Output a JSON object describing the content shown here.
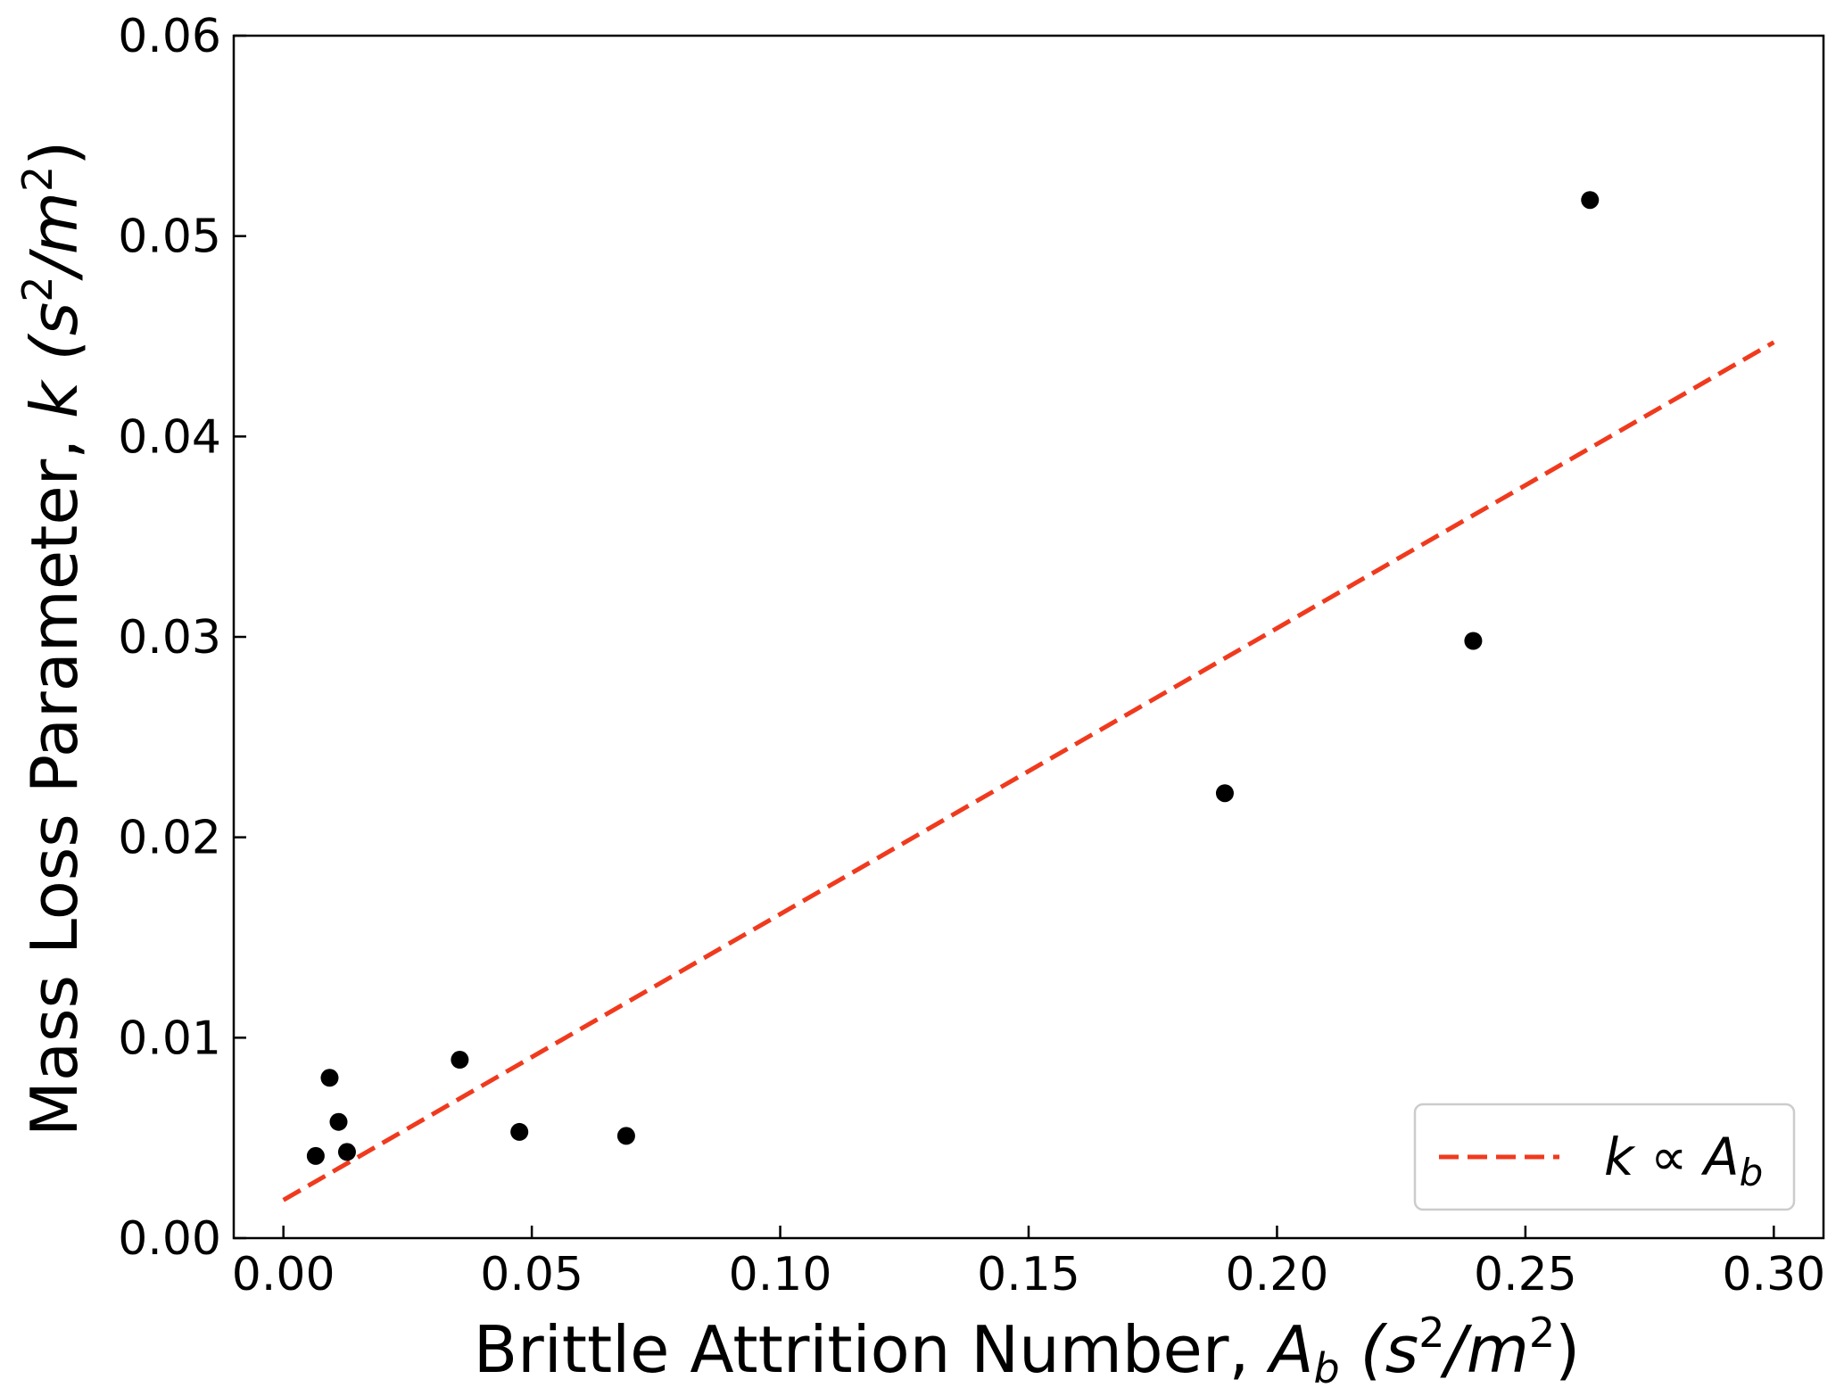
{
  "chart_data": {
    "type": "scatter",
    "xlabel": {
      "text": "Brittle Attrition Number, ",
      "symbol": "A",
      "sub": "b",
      "unit_open": " (s",
      "sup": "2",
      "unit_mid": "/m",
      "sup2": "2",
      "unit_close": ")"
    },
    "ylabel": {
      "text": "Mass Loss Parameter, ",
      "symbol": "k",
      "unit_open": " (s",
      "sup": "2",
      "unit_mid": "/m",
      "sup2": "2",
      "unit_close": ")"
    },
    "xlim": [
      -0.01,
      0.31
    ],
    "ylim": [
      0.0,
      0.06
    ],
    "xticks": [
      0.0,
      0.05,
      0.1,
      0.15,
      0.2,
      0.25,
      0.3
    ],
    "xtick_labels": [
      "0.00",
      "0.05",
      "0.10",
      "0.15",
      "0.20",
      "0.25",
      "0.30"
    ],
    "yticks": [
      0.0,
      0.01,
      0.02,
      0.03,
      0.04,
      0.05,
      0.06
    ],
    "ytick_labels": [
      "0.00",
      "0.01",
      "0.02",
      "0.03",
      "0.04",
      "0.05",
      "0.06"
    ],
    "grid": false,
    "legend_position": "bottom-right",
    "series": [
      {
        "kind": "scatter",
        "color": "#000000",
        "points": [
          {
            "x": 0.0065,
            "y": 0.0041
          },
          {
            "x": 0.0093,
            "y": 0.008
          },
          {
            "x": 0.0111,
            "y": 0.0058
          },
          {
            "x": 0.0128,
            "y": 0.0043
          },
          {
            "x": 0.0355,
            "y": 0.0089
          },
          {
            "x": 0.0475,
            "y": 0.0053
          },
          {
            "x": 0.069,
            "y": 0.0051
          },
          {
            "x": 0.1895,
            "y": 0.0222
          },
          {
            "x": 0.2395,
            "y": 0.0298
          },
          {
            "x": 0.263,
            "y": 0.0518
          }
        ]
      },
      {
        "kind": "line",
        "style": "dashed",
        "color": "#f03a1e",
        "legend": {
          "symbol": "k",
          "relation": " ∝ ",
          "symbol2": "A",
          "sub": "b"
        },
        "points": [
          {
            "x": 0.0,
            "y": 0.0019
          },
          {
            "x": 0.3,
            "y": 0.0447
          }
        ]
      }
    ]
  }
}
